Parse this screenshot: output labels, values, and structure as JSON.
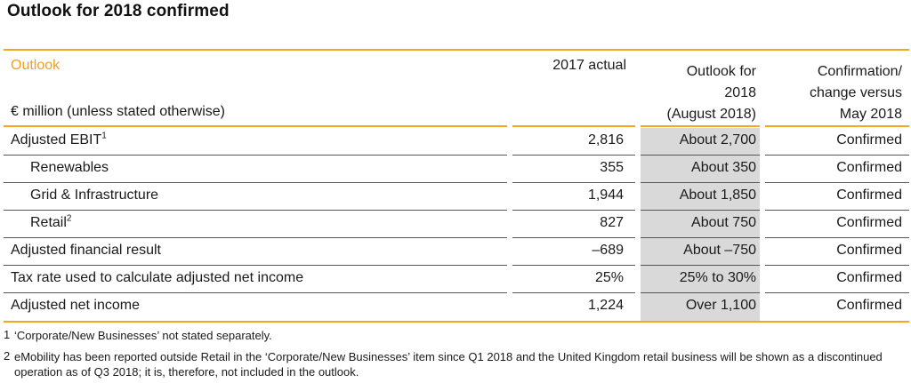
{
  "title": "Outlook for 2018 confirmed",
  "header": {
    "outlook_label": "Outlook",
    "unit_label": "€ million (unless stated otherwise)",
    "col_actual": "2017 actual",
    "col_outlook": [
      "Outlook for",
      "2018",
      "(August 2018)"
    ],
    "col_confirm": [
      "Confirmation/",
      "change versus",
      "May 2018"
    ]
  },
  "rows": [
    {
      "label": "Adjusted EBIT",
      "sup": "1",
      "indent": false,
      "actual": "2,816",
      "outlook": "About 2,700",
      "confirm": "Confirmed"
    },
    {
      "label": "Renewables",
      "sup": "",
      "indent": true,
      "actual": "355",
      "outlook": "About 350",
      "confirm": "Confirmed"
    },
    {
      "label": "Grid & Infrastructure",
      "sup": "",
      "indent": true,
      "actual": "1,944",
      "outlook": "About 1,850",
      "confirm": "Confirmed"
    },
    {
      "label": "Retail",
      "sup": "2",
      "indent": true,
      "actual": "827",
      "outlook": "About 750",
      "confirm": "Confirmed"
    },
    {
      "label": "Adjusted financial result",
      "sup": "",
      "indent": false,
      "actual": "–689",
      "outlook": "About –750",
      "confirm": "Confirmed"
    },
    {
      "label": "Tax rate used to calculate adjusted net income",
      "sup": "",
      "indent": false,
      "actual": "25%",
      "outlook": "25% to 30%",
      "confirm": "Confirmed"
    },
    {
      "label": "Adjusted net income",
      "sup": "",
      "indent": false,
      "actual": "1,224",
      "outlook": "Over 1,100",
      "confirm": "Confirmed"
    }
  ],
  "footnotes": [
    {
      "num": "1",
      "text": "‘Corporate/New Businesses’ not stated separately."
    },
    {
      "num": "2",
      "text": "eMobility has been reported outside Retail in the ‘Corporate/New Businesses’ item since Q1 2018 and the United Kingdom retail business will be shown as a discontinued operation as of Q3 2018; it is, therefore, not included in the outlook."
    }
  ],
  "colors": {
    "accent": "#f5a623",
    "accent_text": "#f0a020",
    "highlight": "#d9d9d9"
  }
}
